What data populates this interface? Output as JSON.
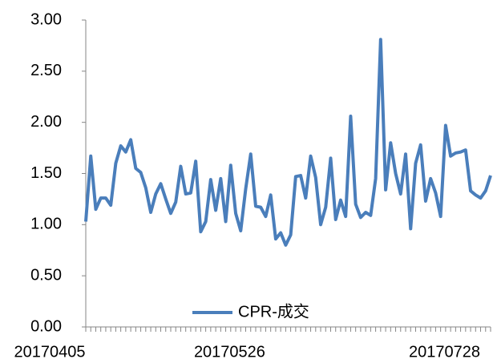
{
  "chart_data": {
    "type": "line",
    "categories": [
      "20170405",
      null,
      null,
      null,
      null,
      null,
      null,
      null,
      null,
      null,
      null,
      null,
      null,
      null,
      null,
      null,
      null,
      null,
      null,
      null,
      null,
      null,
      null,
      null,
      null,
      null,
      null,
      null,
      null,
      null,
      null,
      null,
      null,
      null,
      null,
      null,
      "20170526",
      null,
      null,
      null,
      null,
      null,
      null,
      null,
      null,
      null,
      null,
      null,
      null,
      null,
      null,
      null,
      null,
      null,
      null,
      null,
      null,
      null,
      null,
      null,
      null,
      null,
      null,
      null,
      null,
      null,
      null,
      null,
      null,
      null,
      null,
      null,
      null,
      null,
      null,
      null,
      null,
      null,
      null,
      "20170728",
      null,
      null
    ],
    "series": [
      {
        "name": "CPR-成交",
        "color": "#4a7ebb",
        "values": [
          1.03,
          1.67,
          1.15,
          1.26,
          1.26,
          1.19,
          1.6,
          1.77,
          1.71,
          1.83,
          1.55,
          1.51,
          1.36,
          1.12,
          1.3,
          1.4,
          1.25,
          1.11,
          1.22,
          1.57,
          1.3,
          1.31,
          1.62,
          0.93,
          1.03,
          1.44,
          1.14,
          1.45,
          1.03,
          1.58,
          1.11,
          0.94,
          1.35,
          1.69,
          1.18,
          1.17,
          1.08,
          1.29,
          0.86,
          0.92,
          0.8,
          0.9,
          1.47,
          1.48,
          1.26,
          1.67,
          1.46,
          1.0,
          1.17,
          1.65,
          1.05,
          1.24,
          1.08,
          2.06,
          1.2,
          1.07,
          1.12,
          1.09,
          1.45,
          2.81,
          1.34,
          1.8,
          1.5,
          1.3,
          1.69,
          0.96,
          1.6,
          1.78,
          1.23,
          1.45,
          1.31,
          1.08,
          1.97,
          1.67,
          1.7,
          1.71,
          1.73,
          1.33,
          1.29,
          1.26,
          1.33,
          1.48
        ]
      }
    ],
    "ylim": [
      0,
      3
    ],
    "yticks": [
      {
        "value": 0,
        "label": "0.00"
      },
      {
        "value": 0.5,
        "label": "0.50"
      },
      {
        "value": 1,
        "label": "1.00"
      },
      {
        "value": 1.5,
        "label": "1.50"
      },
      {
        "value": 2,
        "label": "2.00"
      },
      {
        "value": 2.5,
        "label": "2.50"
      },
      {
        "value": 3,
        "label": "3.00"
      }
    ],
    "grid": false,
    "legend": "bottom"
  }
}
